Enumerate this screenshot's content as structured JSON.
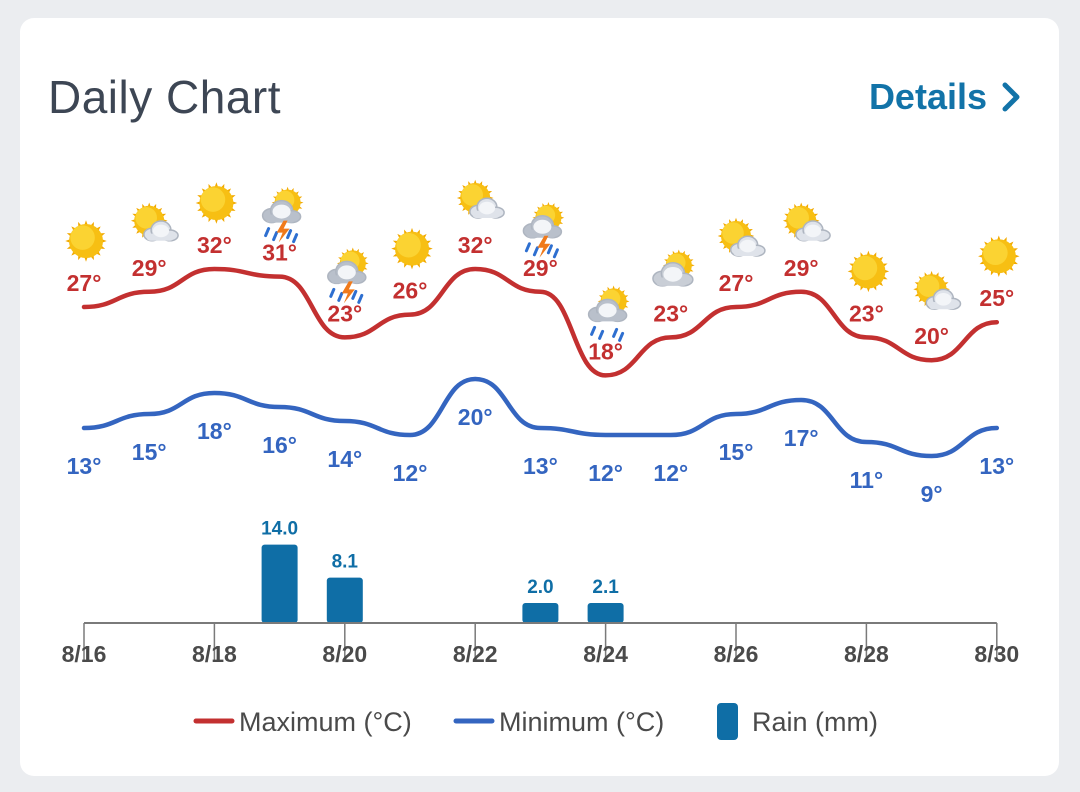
{
  "card": {
    "title": "Daily Chart",
    "details_label": "Details"
  },
  "colors": {
    "max_line": "#c33030",
    "min_line": "#3465c0",
    "rain_bar": "#0f6ea6",
    "axis": "#7a7a7a",
    "text_dark": "#4a4a4a"
  },
  "chart_data": {
    "type": "line",
    "x": [
      "8/16",
      "8/17",
      "8/18",
      "8/19",
      "8/20",
      "8/21",
      "8/22",
      "8/23",
      "8/24",
      "8/25",
      "8/26",
      "8/27",
      "8/28",
      "8/29",
      "8/30"
    ],
    "x_tick_labels": [
      "8/16",
      "8/18",
      "8/20",
      "8/22",
      "8/24",
      "8/26",
      "8/28",
      "8/30"
    ],
    "icons": [
      "sun",
      "sun-cloud",
      "sun",
      "thunder-rain",
      "thunder-rain",
      "sun",
      "sun-cloud",
      "thunder-rain",
      "rain",
      "cloud",
      "sun-cloud",
      "sun-cloud",
      "sun",
      "sun-cloud",
      "sun"
    ],
    "series": [
      {
        "name": "Maximum (°C)",
        "key": "max",
        "values": [
          27,
          29,
          32,
          31,
          23,
          26,
          32,
          29,
          18,
          23,
          27,
          29,
          23,
          20,
          25
        ]
      },
      {
        "name": "Minimum (°C)",
        "key": "min",
        "values": [
          13,
          15,
          18,
          16,
          14,
          12,
          20,
          13,
          12,
          12,
          15,
          17,
          11,
          9,
          13
        ]
      },
      {
        "name": "Rain (mm)",
        "key": "rain",
        "type": "bar",
        "values": [
          0,
          0,
          0,
          14.0,
          8.1,
          0,
          0,
          2.0,
          2.1,
          0,
          0,
          0,
          0,
          0,
          0
        ]
      }
    ],
    "degree_suffix": "°",
    "legend": [
      "Maximum (°C)",
      "Minimum (°C)",
      "Rain (mm)"
    ],
    "legend_placement": "bottom"
  }
}
